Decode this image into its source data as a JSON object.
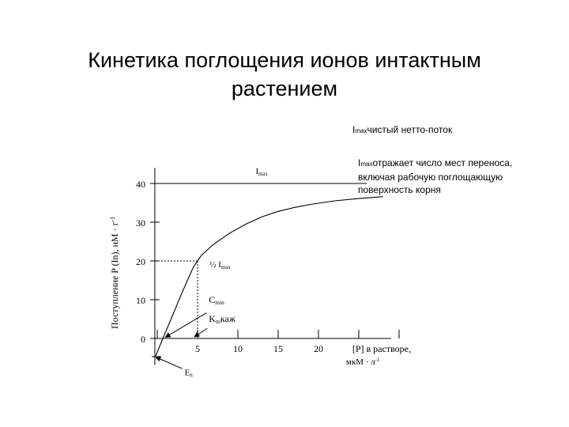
{
  "title": "Кинетика поглощения ионов интактным растением",
  "notes": {
    "note1_main": "I",
    "note1_sub": "max",
    "note1_text": "чистый нетто-поток",
    "note2_main": "I",
    "note2_sub": "max",
    "note2_text_line1": "отражает число мест переноса,",
    "note2_text_line2": "включая рабочую поглощающую",
    "note2_text_line3": "поверхность корня"
  },
  "chart_data": {
    "type": "line",
    "title": "",
    "xlabel_line1": "[P] в растворе,",
    "xlabel_line2": "мкМ · л",
    "xlabel_sup": "-1",
    "ylabel": "Поступление P (In), нМ · г",
    "ylabel_sup": "-1",
    "x_tick_labels": [
      "5",
      "10",
      "15",
      "20"
    ],
    "y_tick_labels": [
      "0",
      "10",
      "20",
      "30",
      "40"
    ],
    "xlim": [
      -1,
      29
    ],
    "ylim": [
      -5,
      45
    ],
    "grid": false,
    "series": [
      {
        "x": [
          -0.2,
          0.7,
          1.8,
          2.8,
          3.7,
          4.5,
          5.5,
          7,
          9,
          11,
          13,
          15,
          17,
          19,
          22,
          25,
          28
        ],
        "y": [
          -4.5,
          0,
          5.5,
          10.5,
          14.8,
          18.5,
          21.5,
          24.3,
          27.2,
          29.5,
          31.4,
          32.8,
          33.8,
          34.6,
          35.5,
          36.1,
          36.6
        ]
      }
    ],
    "reference_lines": {
      "imax_y": 40,
      "half_point": [
        5,
        20
      ]
    },
    "annotations": {
      "imax_label_main": "I",
      "imax_label_sub": "max",
      "half_label_main": "½ I",
      "half_label_sub": "max",
      "cmin_main": "C",
      "cmin_sub": "min",
      "km_main": "K",
      "km_sub": "m",
      "km_text": "каж",
      "en_main": "E",
      "en_sub": "n"
    }
  }
}
